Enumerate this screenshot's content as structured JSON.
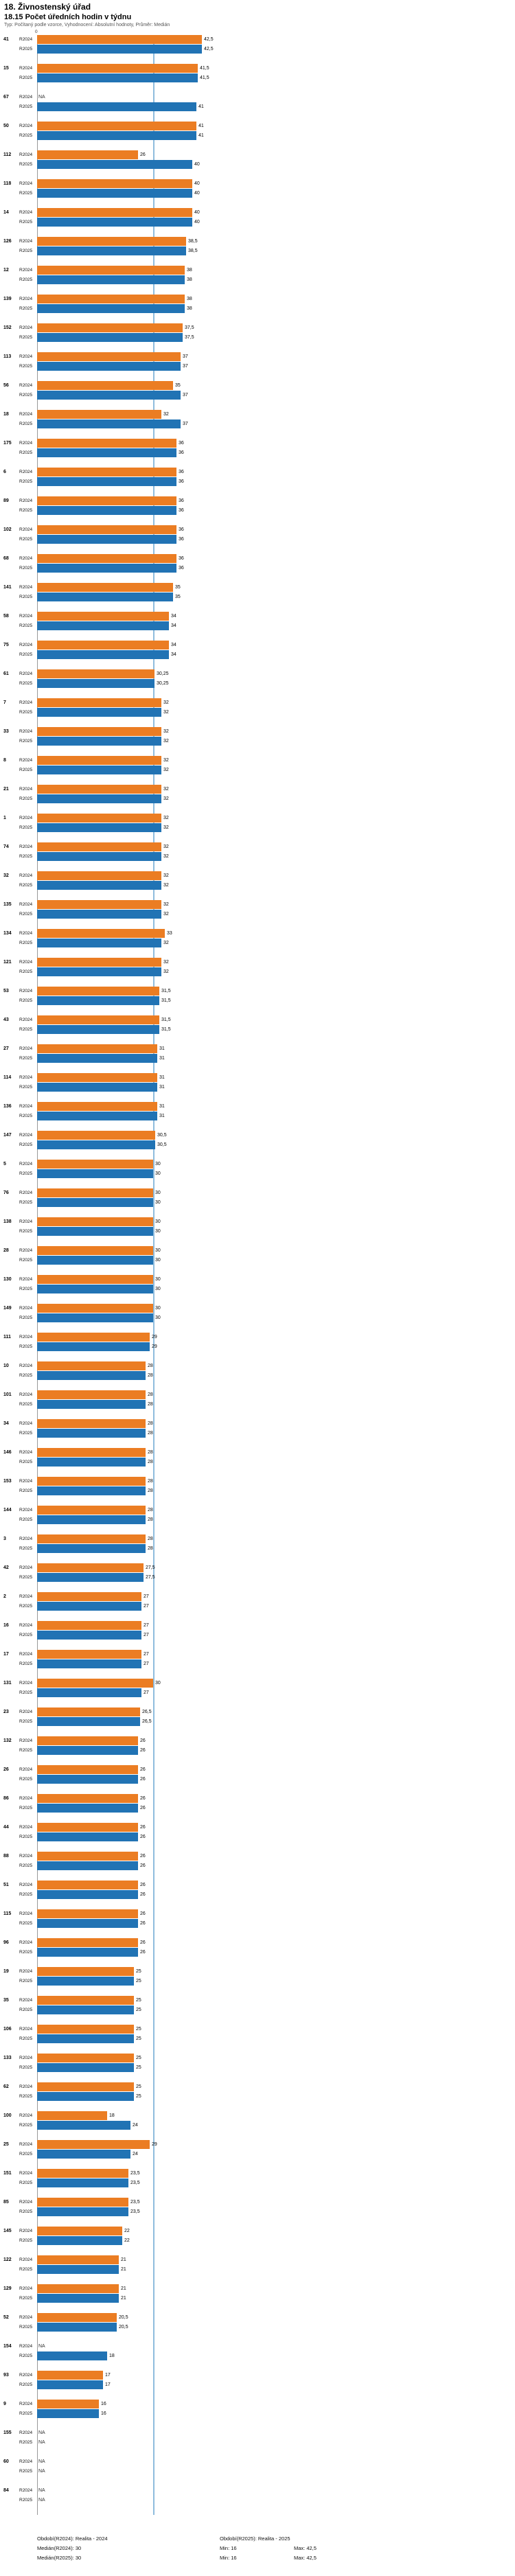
{
  "header": {
    "title": "18. Živnostenský úřad",
    "subtitle": "18.15 Počet úředních hodin v týdnu",
    "meta": "Typ: Počítaný podle vzorce, Vyhodnocení: Absolutní hodnoty, Průměr: Medián"
  },
  "axis": {
    "origin_label": "0"
  },
  "chart_data": {
    "type": "bar",
    "orientation": "horizontal",
    "title": "18.15 Počet úředních hodin v týdnu",
    "xlabel": "",
    "ylabel": "",
    "xlim": [
      0,
      42.5
    ],
    "median_line": 30,
    "grid": false,
    "legend_position": "bottom",
    "series": [
      {
        "name": "R2024",
        "color": "#EB7D23"
      },
      {
        "name": "R2025",
        "color": "#2173B4"
      }
    ],
    "rows": [
      {
        "id": "41",
        "values": [
          "42,5",
          "42,5"
        ]
      },
      {
        "id": "15",
        "values": [
          "41,5",
          "41,5"
        ]
      },
      {
        "id": "67",
        "values": [
          "NA",
          "41"
        ]
      },
      {
        "id": "50",
        "values": [
          "41",
          "41"
        ]
      },
      {
        "id": "112",
        "values": [
          "26",
          "40"
        ]
      },
      {
        "id": "118",
        "values": [
          "40",
          "40"
        ]
      },
      {
        "id": "14",
        "values": [
          "40",
          "40"
        ]
      },
      {
        "id": "126",
        "values": [
          "38,5",
          "38,5"
        ]
      },
      {
        "id": "12",
        "values": [
          "38",
          "38"
        ]
      },
      {
        "id": "139",
        "values": [
          "38",
          "38"
        ]
      },
      {
        "id": "152",
        "values": [
          "37,5",
          "37,5"
        ]
      },
      {
        "id": "113",
        "values": [
          "37",
          "37"
        ]
      },
      {
        "id": "56",
        "values": [
          "35",
          "37"
        ]
      },
      {
        "id": "18",
        "values": [
          "32",
          "37"
        ]
      },
      {
        "id": "175",
        "values": [
          "36",
          "36"
        ]
      },
      {
        "id": "6",
        "values": [
          "36",
          "36"
        ]
      },
      {
        "id": "89",
        "values": [
          "36",
          "36"
        ]
      },
      {
        "id": "102",
        "values": [
          "36",
          "36"
        ]
      },
      {
        "id": "68",
        "values": [
          "36",
          "36"
        ]
      },
      {
        "id": "141",
        "values": [
          "35",
          "35"
        ]
      },
      {
        "id": "58",
        "values": [
          "34",
          "34"
        ]
      },
      {
        "id": "75",
        "values": [
          "34",
          "34"
        ]
      },
      {
        "id": "61",
        "values": [
          "30,25",
          "30,25"
        ]
      },
      {
        "id": "7",
        "values": [
          "32",
          "32"
        ]
      },
      {
        "id": "33",
        "values": [
          "32",
          "32"
        ]
      },
      {
        "id": "8",
        "values": [
          "32",
          "32"
        ]
      },
      {
        "id": "21",
        "values": [
          "32",
          "32"
        ]
      },
      {
        "id": "1",
        "values": [
          "32",
          "32"
        ]
      },
      {
        "id": "74",
        "values": [
          "32",
          "32"
        ]
      },
      {
        "id": "32",
        "values": [
          "32",
          "32"
        ]
      },
      {
        "id": "135",
        "values": [
          "32",
          "32"
        ]
      },
      {
        "id": "134",
        "values": [
          "33",
          "32"
        ]
      },
      {
        "id": "121",
        "values": [
          "32",
          "32"
        ]
      },
      {
        "id": "53",
        "values": [
          "31,5",
          "31,5"
        ]
      },
      {
        "id": "43",
        "values": [
          "31,5",
          "31,5"
        ]
      },
      {
        "id": "27",
        "values": [
          "31",
          "31"
        ]
      },
      {
        "id": "114",
        "values": [
          "31",
          "31"
        ]
      },
      {
        "id": "136",
        "values": [
          "31",
          "31"
        ]
      },
      {
        "id": "147",
        "values": [
          "30,5",
          "30,5"
        ]
      },
      {
        "id": "5",
        "values": [
          "30",
          "30"
        ]
      },
      {
        "id": "76",
        "values": [
          "30",
          "30"
        ]
      },
      {
        "id": "138",
        "values": [
          "30",
          "30"
        ]
      },
      {
        "id": "28",
        "values": [
          "30",
          "30"
        ]
      },
      {
        "id": "130",
        "values": [
          "30",
          "30"
        ]
      },
      {
        "id": "149",
        "values": [
          "30",
          "30"
        ]
      },
      {
        "id": "111",
        "values": [
          "29",
          "29"
        ]
      },
      {
        "id": "10",
        "values": [
          "28",
          "28"
        ]
      },
      {
        "id": "101",
        "values": [
          "28",
          "28"
        ]
      },
      {
        "id": "34",
        "values": [
          "28",
          "28"
        ]
      },
      {
        "id": "146",
        "values": [
          "28",
          "28"
        ]
      },
      {
        "id": "153",
        "values": [
          "28",
          "28"
        ]
      },
      {
        "id": "144",
        "values": [
          "28",
          "28"
        ]
      },
      {
        "id": "3",
        "values": [
          "28",
          "28"
        ]
      },
      {
        "id": "42",
        "values": [
          "27,5",
          "27,5"
        ]
      },
      {
        "id": "2",
        "values": [
          "27",
          "27"
        ]
      },
      {
        "id": "16",
        "values": [
          "27",
          "27"
        ]
      },
      {
        "id": "17",
        "values": [
          "27",
          "27"
        ]
      },
      {
        "id": "131",
        "values": [
          "30",
          "27"
        ]
      },
      {
        "id": "23",
        "values": [
          "26,5",
          "26,5"
        ]
      },
      {
        "id": "132",
        "values": [
          "26",
          "26"
        ]
      },
      {
        "id": "26",
        "values": [
          "26",
          "26"
        ]
      },
      {
        "id": "86",
        "values": [
          "26",
          "26"
        ]
      },
      {
        "id": "44",
        "values": [
          "26",
          "26"
        ]
      },
      {
        "id": "88",
        "values": [
          "26",
          "26"
        ]
      },
      {
        "id": "51",
        "values": [
          "26",
          "26"
        ]
      },
      {
        "id": "115",
        "values": [
          "26",
          "26"
        ]
      },
      {
        "id": "96",
        "values": [
          "26",
          "26"
        ]
      },
      {
        "id": "19",
        "values": [
          "25",
          "25"
        ]
      },
      {
        "id": "35",
        "values": [
          "25",
          "25"
        ]
      },
      {
        "id": "106",
        "values": [
          "25",
          "25"
        ]
      },
      {
        "id": "133",
        "values": [
          "25",
          "25"
        ]
      },
      {
        "id": "62",
        "values": [
          "25",
          "25"
        ]
      },
      {
        "id": "100",
        "values": [
          "18",
          "24"
        ]
      },
      {
        "id": "25",
        "values": [
          "29",
          "24"
        ]
      },
      {
        "id": "151",
        "values": [
          "23,5",
          "23,5"
        ]
      },
      {
        "id": "85",
        "values": [
          "23,5",
          "23,5"
        ]
      },
      {
        "id": "145",
        "values": [
          "22",
          "22"
        ]
      },
      {
        "id": "122",
        "values": [
          "21",
          "21"
        ]
      },
      {
        "id": "129",
        "values": [
          "21",
          "21"
        ]
      },
      {
        "id": "52",
        "values": [
          "20,5",
          "20,5"
        ]
      },
      {
        "id": "154",
        "values": [
          "NA",
          "18"
        ]
      },
      {
        "id": "93",
        "values": [
          "17",
          "17"
        ]
      },
      {
        "id": "9",
        "values": [
          "16",
          "16"
        ]
      },
      {
        "id": "155",
        "values": [
          "NA",
          "NA"
        ]
      },
      {
        "id": "60",
        "values": [
          "NA",
          "NA"
        ]
      },
      {
        "id": "84",
        "values": [
          "NA",
          "NA"
        ]
      }
    ]
  },
  "legend": {
    "period_r2024": "Období(R2024): Realita - 2024",
    "period_r2025": "Období(R2025): Realita - 2025",
    "median_r2024_label": "Medián(R2024): 30",
    "median_r2025_label": "Medián(R2025): 30",
    "min_r2024": "Min: 16",
    "max_r2024": "Max: 42,5",
    "min_r2025": "Min: 16",
    "max_r2025": "Max: 42,5"
  }
}
